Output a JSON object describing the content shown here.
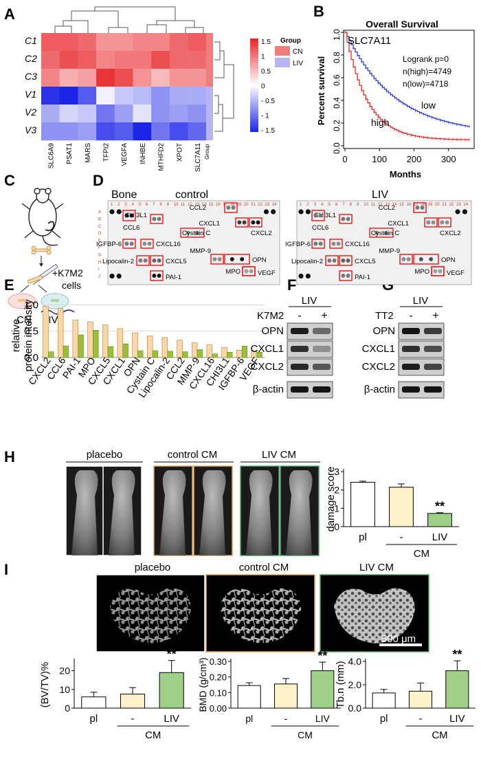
{
  "panels": {
    "A": "A",
    "B": "B",
    "C": "C",
    "D": "D",
    "E": "E",
    "F": "F",
    "G": "G",
    "H": "H",
    "I": "I"
  },
  "heatmap": {
    "rows": [
      "C1",
      "C2",
      "C3",
      "V1",
      "V2",
      "V3"
    ],
    "columns": [
      "SLC6A9",
      "PSAT1",
      "MARS",
      "TFPI2",
      "VEGFA",
      "INHBE",
      "MTHFD2",
      "XPOT",
      "SLC7A11"
    ],
    "group_col_label": "Group",
    "values": [
      [
        1.2,
        1.2,
        1.1,
        0.8,
        0.8,
        0.9,
        0.9,
        1.1,
        1.2
      ],
      [
        1.1,
        1.3,
        1.2,
        0.9,
        1.0,
        1.0,
        1.3,
        1.1,
        1.1
      ],
      [
        0.9,
        0.6,
        0.7,
        1.5,
        1.3,
        0.8,
        0.5,
        0.8,
        0.8
      ],
      [
        -1.5,
        -1.6,
        -1.2,
        -0.1,
        -0.4,
        -0.5,
        -0.8,
        -0.6,
        -0.6
      ],
      [
        -0.6,
        -0.3,
        -0.4,
        -1.0,
        -0.7,
        -0.2,
        -0.8,
        -0.7,
        -0.8
      ],
      [
        -0.8,
        -0.8,
        -0.7,
        -1.3,
        -1.2,
        -1.6,
        -1.0,
        -1.3,
        -1.1
      ]
    ],
    "legend_title": "Group",
    "legend_items": [
      {
        "label": "CN",
        "color": "#f07c7c"
      },
      {
        "label": "LIV",
        "color": "#b8b4f0"
      }
    ],
    "colorbar_ticks": [
      "1.5",
      "1",
      "0.5",
      "0",
      "- 0.5",
      "- 1",
      "- 1.5"
    ],
    "colorbar_max": "#e8262a",
    "colorbar_mid": "#ffffff",
    "colorbar_min": "#1c24e6"
  },
  "survival": {
    "title": "Overall Survival",
    "gene": "SLC7A11",
    "stats_lines": [
      "Logrank p=0",
      "n(high)=4749",
      "n(low)=4718"
    ],
    "xlabel": "Months",
    "ylabel": "Percent survival",
    "x_ticks": [
      "0",
      "100",
      "200",
      "300"
    ],
    "y_ticks": [
      "0.0",
      "0.2",
      "0.4",
      "0.6",
      "0.8",
      "1.0"
    ],
    "label_low": "low",
    "label_high": "high",
    "low_color": "#2b3ddc",
    "high_color": "#e32b2b"
  },
  "schematic": {
    "treatment": "+K7M2",
    "treatment2": "cells",
    "group_cn": "CN",
    "group_liv": "LIV"
  },
  "array": {
    "left_title_a": "Bone",
    "left_title_b": "control",
    "right_title": "LIV",
    "col_numbers": [
      "1",
      "2",
      "3",
      "4",
      "5",
      "6",
      "7",
      "8",
      "9",
      "10",
      "11",
      "12",
      "13",
      "14",
      "15",
      "16",
      "17",
      "18",
      "19",
      "20",
      "21",
      "22",
      "23",
      "24"
    ],
    "row_letters": [
      "A",
      "B",
      "C",
      "D",
      "E",
      "F",
      "G",
      "H",
      "I",
      "J"
    ],
    "labels_left": [
      "CCL2",
      "CHI3L1",
      "CCL6",
      "CXCL1",
      "CXCL2",
      "Cystain C",
      "CXCL16",
      "IGFBP-6",
      "MMP-9",
      "CXCL5",
      "Lipocalin-2",
      "OPN",
      "MPO",
      "VEGF",
      "PAI-1"
    ],
    "labels_right": [
      "CCL2",
      "CHI3L1",
      "CCL6",
      "CXCL1",
      "CXCL2",
      "Cystain C",
      "CXCL16",
      "IGFBP-6",
      "MMP-9",
      "CXCL5",
      "Lipocalin-2",
      "OPN",
      "MPO",
      "VEGF",
      "PAI-1"
    ]
  },
  "chart_data": [
    {
      "type": "bar",
      "panel": "E",
      "ylabel": "relative protein intensity",
      "categories": [
        "CXCL2",
        "CCL6",
        "PAI-1",
        "MPO",
        "CXCL5",
        "CXCL1",
        "OPN",
        "Cystain C",
        "Lipocalin-2",
        "CCL2",
        "MMP-9",
        "CXCL16",
        "CHI3L1",
        "IGFBP-6",
        "VEGF"
      ],
      "series": [
        {
          "values": [
            0.97,
            0.93,
            0.71,
            0.68,
            0.62,
            0.55,
            0.47,
            0.41,
            0.38,
            0.33,
            0.28,
            0.24,
            0.19,
            0.14,
            0.13
          ],
          "color": "#fbd7a6"
        },
        {
          "values": [
            0.11,
            0.22,
            0.43,
            0.52,
            0.21,
            0.26,
            0.13,
            0.13,
            0.12,
            0.11,
            0.15,
            0.07,
            0.1,
            0.22,
            0.1
          ],
          "color": "#9bbf3c"
        }
      ],
      "y_ticks": [
        "0.0",
        "0.5",
        "1.0"
      ],
      "ylim": [
        0,
        1.15
      ],
      "grid": true
    },
    {
      "type": "bar",
      "panel": "H",
      "ylabel": "damage score",
      "categories": [
        "pl",
        "-",
        "LIV"
      ],
      "group_label": "CM",
      "values": [
        2.42,
        2.15,
        0.72
      ],
      "errors": [
        0.06,
        0.18,
        0.04
      ],
      "colors": [
        "#ffffff",
        "#fdf1c9",
        "#9fd088"
      ],
      "significance": [
        "",
        "",
        "**"
      ],
      "y_ticks": [
        "0",
        "1",
        "2",
        "3"
      ],
      "ylim": [
        0,
        3
      ]
    },
    {
      "type": "bar",
      "panel": "I",
      "ylabel": "(BV/TV)%",
      "categories": [
        "pl",
        "-",
        "LIV"
      ],
      "group_label": "CM",
      "values": [
        6,
        7.5,
        19
      ],
      "errors": [
        2.5,
        3.5,
        6.5
      ],
      "colors": [
        "#ffffff",
        "#fdf1c9",
        "#9fd088"
      ],
      "significance": [
        "",
        "",
        "**"
      ],
      "y_ticks": [
        "0",
        "10",
        "20"
      ],
      "ylim": [
        0,
        25
      ]
    },
    {
      "type": "bar",
      "panel": "I",
      "ylabel": "BMD (g/cm³)",
      "categories": [
        "pl",
        "-",
        "LIV"
      ],
      "group_label": "CM",
      "values": [
        0.145,
        0.155,
        0.24
      ],
      "errors": [
        0.018,
        0.035,
        0.055
      ],
      "colors": [
        "#ffffff",
        "#fdf1c9",
        "#9fd088"
      ],
      "significance": [
        "",
        "",
        "**"
      ],
      "y_ticks": [
        "0.00",
        "0.10",
        "0.20",
        "0.30"
      ],
      "ylim": [
        0,
        0.3
      ]
    },
    {
      "type": "bar",
      "panel": "I",
      "ylabel": "Tb.n (mm)",
      "categories": [
        "pl",
        "-",
        "LIV"
      ],
      "group_label": "CM",
      "values": [
        1.3,
        1.45,
        3.2
      ],
      "errors": [
        0.3,
        0.7,
        0.85
      ],
      "colors": [
        "#ffffff",
        "#fdf1c9",
        "#9fd088"
      ],
      "significance": [
        "",
        "",
        "**"
      ],
      "y_ticks": [
        "0.0",
        "2.0",
        "4.0"
      ],
      "ylim": [
        0,
        4
      ]
    }
  ],
  "western_F": {
    "header": "LIV",
    "treat_label": "K7M2",
    "signs": [
      "-",
      "+"
    ],
    "bands": [
      "OPN",
      "CXCL1",
      "CXCL2",
      "β-actin"
    ]
  },
  "western_G": {
    "header": "LIV",
    "treat_label": "TT2",
    "signs": [
      "-",
      "+"
    ],
    "bands": [
      "OPN",
      "CXCL1",
      "CXCL2",
      "β-actin"
    ]
  },
  "xray": {
    "groups": [
      "placebo",
      "control CM",
      "LIV CM"
    ],
    "border_colors": [
      "#ffffff",
      "#e3a25a",
      "#4aa36a"
    ]
  },
  "microct": {
    "groups": [
      "placebo",
      "control CM",
      "LIV CM"
    ],
    "border_colors": [
      "#ffffff",
      "#e3a25a",
      "#4aa36a"
    ],
    "scalebar": "500 μm"
  }
}
